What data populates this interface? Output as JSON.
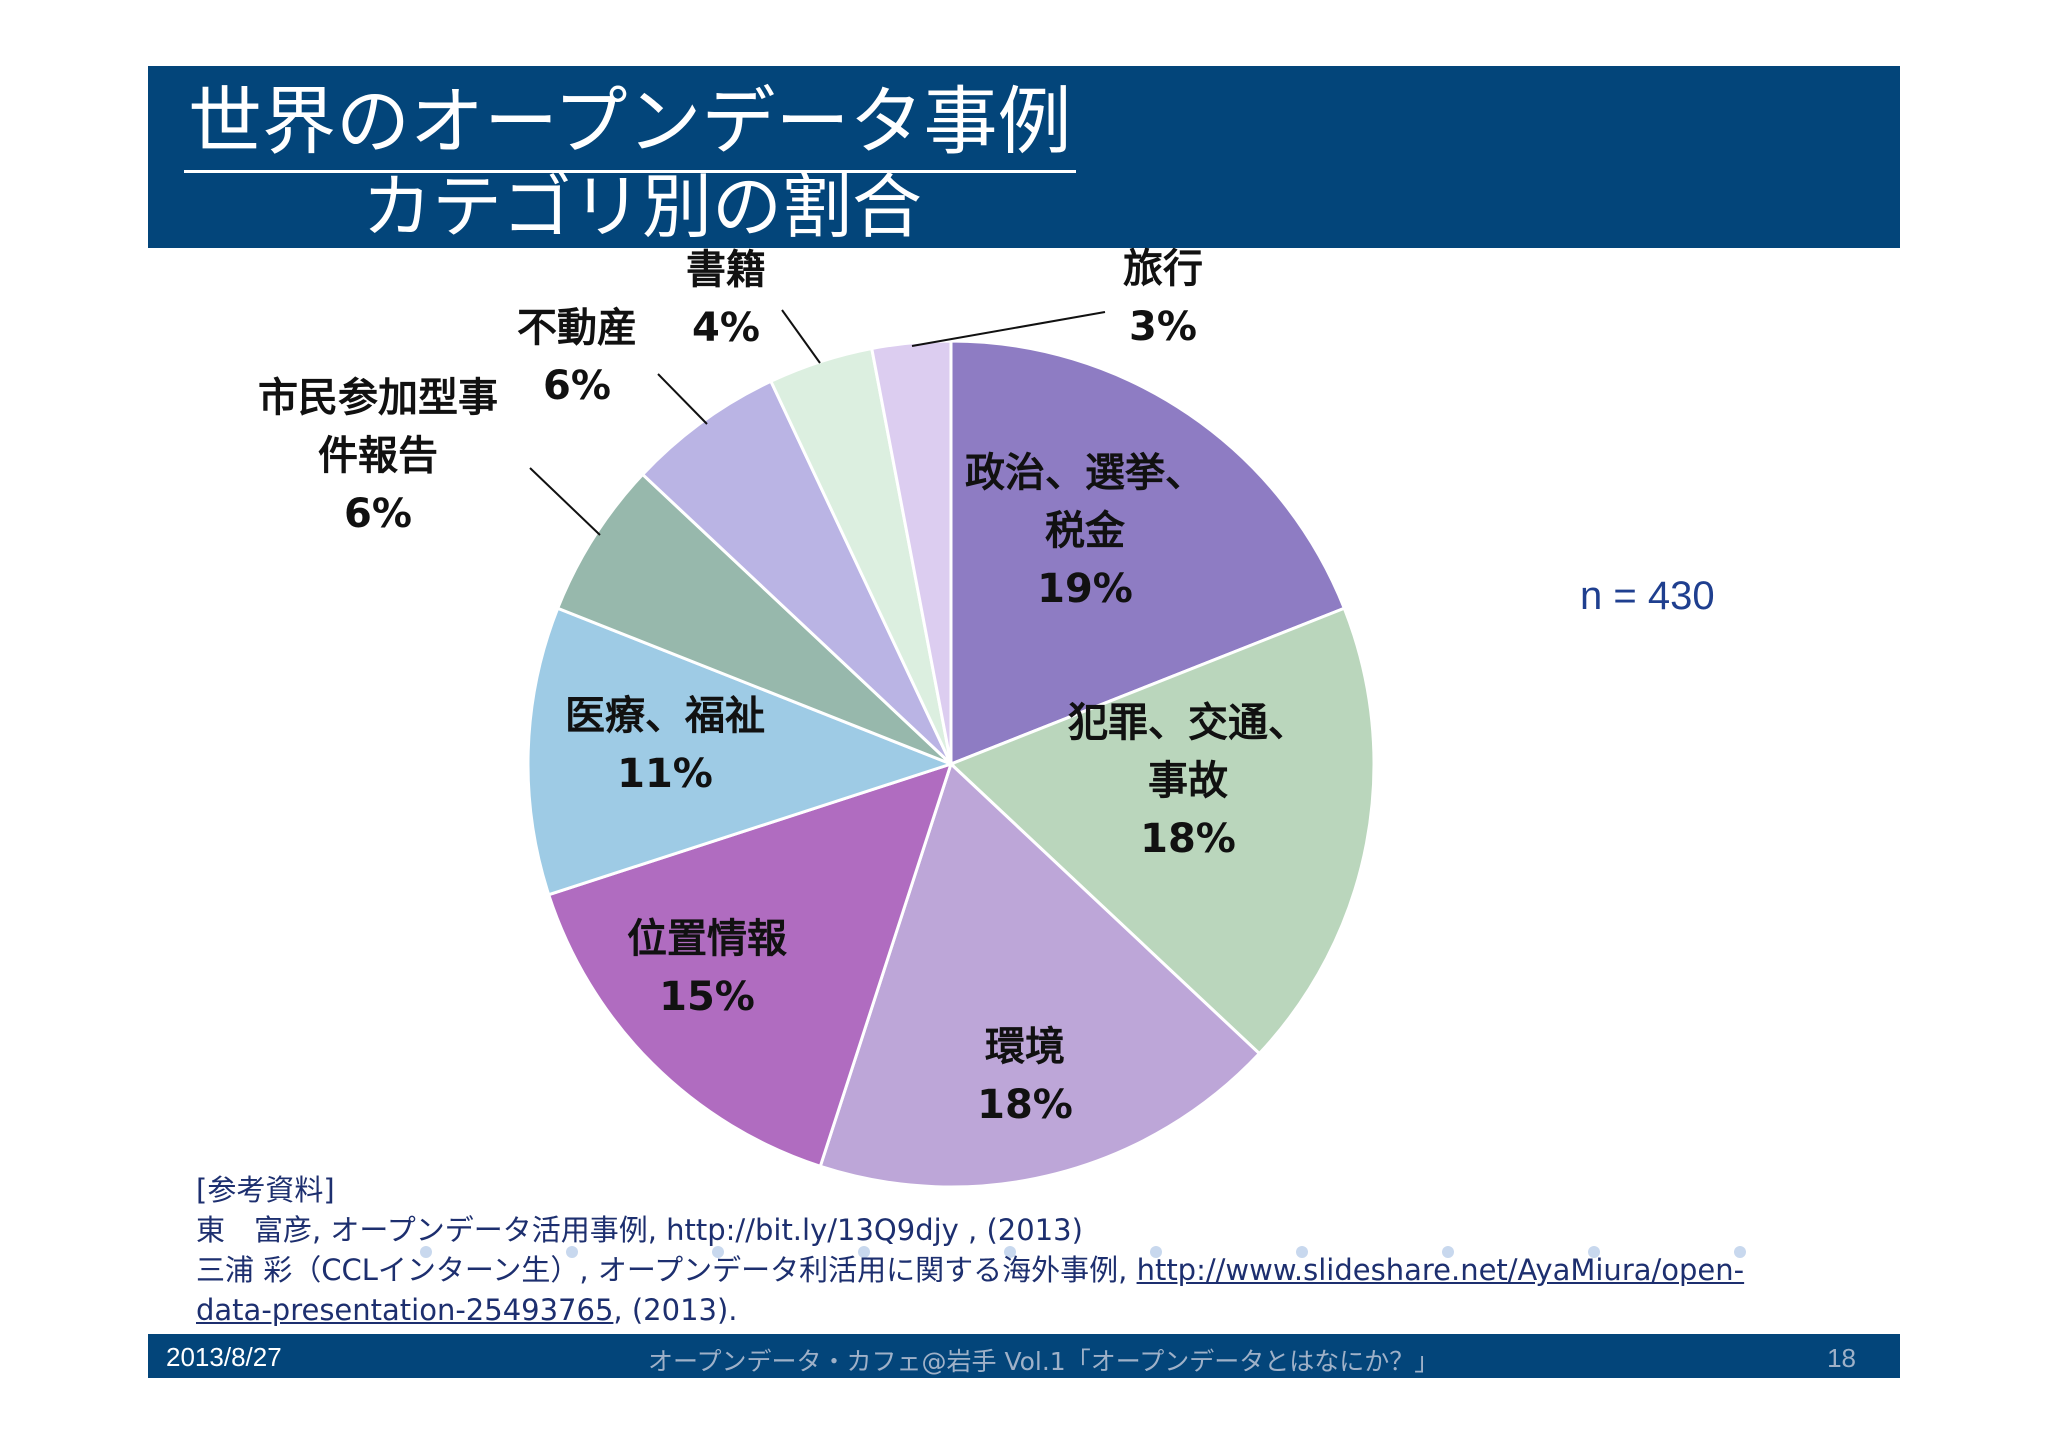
{
  "title": {
    "line1": "世界のオープンデータ事例",
    "line2": "カテゴリ別の割合"
  },
  "chart_data": {
    "type": "pie",
    "sample_size_label": "n = 430",
    "slices": [
      {
        "name": "政治、選挙、税金",
        "label_lines": [
          "政治、選挙、",
          "税金"
        ],
        "pct_label": "19%",
        "value": 19,
        "color": "#8e7cc3"
      },
      {
        "name": "犯罪、交通、事故",
        "label_lines": [
          "犯罪、交通、",
          "事故"
        ],
        "pct_label": "18%",
        "value": 18,
        "color": "#bad6bc"
      },
      {
        "name": "環境",
        "label_lines": [
          "環境"
        ],
        "pct_label": "18%",
        "value": 18,
        "color": "#bda6d8"
      },
      {
        "name": "位置情報",
        "label_lines": [
          "位置情報"
        ],
        "pct_label": "15%",
        "value": 15,
        "color": "#b06cc0"
      },
      {
        "name": "医療、福祉",
        "label_lines": [
          "医療、福祉"
        ],
        "pct_label": "11%",
        "value": 11,
        "color": "#9ecbe5"
      },
      {
        "name": "市民参加型事件報告",
        "label_lines": [
          "市民参加型事",
          "件報告"
        ],
        "pct_label": "6%",
        "value": 6,
        "color": "#97b8ac"
      },
      {
        "name": "不動産",
        "label_lines": [
          "不動産"
        ],
        "pct_label": "6%",
        "value": 6,
        "color": "#bab4e4"
      },
      {
        "name": "書籍",
        "label_lines": [
          "書籍"
        ],
        "pct_label": "4%",
        "value": 4,
        "color": "#dcefe0"
      },
      {
        "name": "旅行",
        "label_lines": [
          "旅行"
        ],
        "pct_label": "3%",
        "value": 3,
        "color": "#dccdf0"
      }
    ]
  },
  "references": {
    "heading": "[参考資料]",
    "ref1_text": "東　富彦, オープンデータ活用事例, http://bit.ly/13Q9djy , (2013)",
    "ref2_prefix": "三浦 彩（CCLインターン生）, オープンデータ利活用に関する海外事例, ",
    "ref2_link_a": "http://www.slideshare.net/AyaMiura/open-",
    "ref2_link_b": "data-presentation-25493765",
    "ref2_suffix": ", (2013)."
  },
  "footer": {
    "date": "2013/8/27",
    "event": "オープンデータ・カフェ@岩手 Vol.1「オープンデータとはなにか？」",
    "page": "18"
  }
}
